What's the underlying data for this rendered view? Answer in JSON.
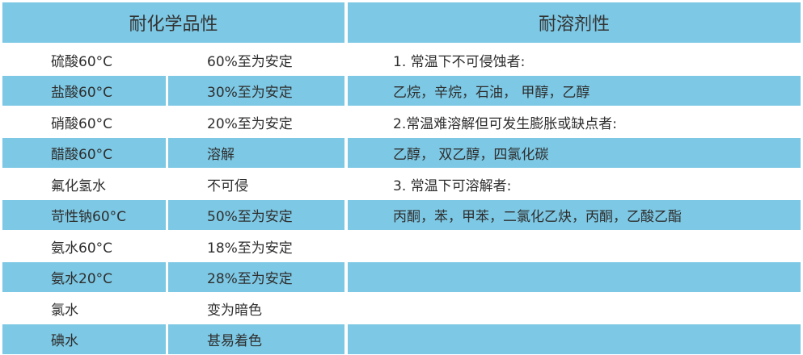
{
  "headers": {
    "chemical": "耐化学品性",
    "solvent": "耐溶剂性"
  },
  "chemical_rows": [
    {
      "name": "硫酸60°C",
      "result": "60%至为安定"
    },
    {
      "name": "盐酸60°C",
      "result": "30%至为安定"
    },
    {
      "name": "硝酸60°C",
      "result": "20%至为安定"
    },
    {
      "name": "醋酸60°C",
      "result": "溶解"
    },
    {
      "name": "氟化氢水",
      "result": "不可侵"
    },
    {
      "name": "苛性钠60°C",
      "result": "50%至为安定"
    },
    {
      "name": "氨水60°C",
      "result": "18%至为安定"
    },
    {
      "name": "氨水20°C",
      "result": "28%至为安定"
    },
    {
      "name": "氯水",
      "result": "变为暗色"
    },
    {
      "name": "碘水",
      "result": "甚易着色"
    }
  ],
  "solvent_rows": [
    "1. 常温下不可侵蚀者:",
    "乙烷，辛烷，石油， 甲醇，乙醇",
    "2.常温难溶解但可发生膨胀或缺点者:",
    "乙醇， 双乙醇，四氯化碳",
    "3. 常温下可溶解者:",
    "丙酮，苯，甲苯，二氯化乙炔，丙酮，乙酸乙酯",
    "",
    "",
    "",
    ""
  ],
  "colors": {
    "stripe": "#7dc8e4"
  }
}
